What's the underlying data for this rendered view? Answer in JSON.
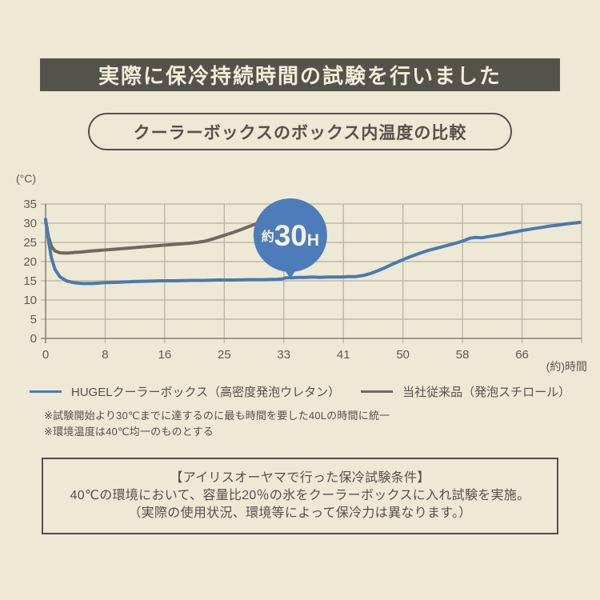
{
  "page": {
    "bg_color": "#EDE9D5",
    "ink_color": "#55524A"
  },
  "banner": {
    "title": "実際に保冷持続時間の試験を行いました",
    "bg_color": "#55524A",
    "text_color": "#F2EEDB"
  },
  "subtitle_pill": {
    "label": "クーラーボックスのボックス内温度の比較"
  },
  "chart_data": {
    "type": "line",
    "title": "クーラーボックスのボックス内温度の比較",
    "unit_label": "(°C)",
    "xlabel": "(約)時間",
    "ylim": [
      0,
      35
    ],
    "yticks": [
      35,
      30,
      25,
      20,
      15,
      10,
      5,
      0
    ],
    "xticks": [
      0,
      8,
      16,
      25,
      33,
      41,
      50,
      58,
      66
    ],
    "hours_per_tick": 8.25,
    "grid": true,
    "grid_color": "#B4B0A2",
    "axis_color": "#8A8679",
    "tick_text_color": "#5E5B51",
    "legend_position": "bottom",
    "annotation": {
      "prefix": "約",
      "value": "30",
      "suffix": "H",
      "t": 33.9,
      "bg_color": "#4C7DBA",
      "text_color": "#F4F1E3"
    },
    "series": [
      {
        "name": "HUGELクーラーボックス（高密度発泡ウレタン）",
        "color": "#4A79B2",
        "points": [
          [
            0,
            31
          ],
          [
            0.4,
            25.5
          ],
          [
            0.8,
            21
          ],
          [
            1.3,
            18
          ],
          [
            2,
            16
          ],
          [
            3,
            14.9
          ],
          [
            4,
            14.5
          ],
          [
            5,
            14.3
          ],
          [
            6.5,
            14.3
          ],
          [
            8,
            14.5
          ],
          [
            10,
            14.6
          ],
          [
            12,
            14.8
          ],
          [
            14,
            14.9
          ],
          [
            16,
            15.0
          ],
          [
            18,
            15.0
          ],
          [
            20,
            15.1
          ],
          [
            22,
            15.1
          ],
          [
            24,
            15.2
          ],
          [
            26,
            15.2
          ],
          [
            28,
            15.3
          ],
          [
            30,
            15.3
          ],
          [
            32,
            15.4
          ],
          [
            32.8,
            15.5
          ],
          [
            33.3,
            15.8
          ],
          [
            34,
            15.8
          ],
          [
            35,
            15.9
          ],
          [
            36,
            15.9
          ],
          [
            37,
            16.0
          ],
          [
            38,
            15.9
          ],
          [
            39,
            16.0
          ],
          [
            40,
            16.0
          ],
          [
            41,
            16.0
          ],
          [
            42,
            16.1
          ],
          [
            43,
            16.1
          ],
          [
            44,
            16.4
          ],
          [
            45,
            16.9
          ],
          [
            46,
            17.6
          ],
          [
            47,
            18.4
          ],
          [
            48,
            19.3
          ],
          [
            49,
            20.1
          ],
          [
            50,
            20.9
          ],
          [
            51,
            21.6
          ],
          [
            52,
            22.3
          ],
          [
            53,
            22.9
          ],
          [
            54,
            23.4
          ],
          [
            55,
            23.9
          ],
          [
            56,
            24.4
          ],
          [
            57,
            24.9
          ],
          [
            58,
            25.5
          ],
          [
            58.8,
            26.1
          ],
          [
            59.5,
            26.3
          ],
          [
            60.5,
            26.2
          ],
          [
            61,
            26.4
          ],
          [
            62,
            26.7
          ],
          [
            63,
            27.0
          ],
          [
            64,
            27.4
          ],
          [
            65,
            27.7
          ],
          [
            66,
            28.1
          ],
          [
            67,
            28.4
          ],
          [
            68,
            28.7
          ],
          [
            69,
            29.0
          ],
          [
            70,
            29.3
          ],
          [
            71,
            29.5
          ],
          [
            72,
            29.8
          ],
          [
            73,
            30.0
          ],
          [
            74,
            30.2
          ]
        ]
      },
      {
        "name": "当社従来品（発泡スチロール）",
        "color": "#6E6A5F",
        "points": [
          [
            0,
            30.8
          ],
          [
            0.4,
            26.5
          ],
          [
            0.8,
            24
          ],
          [
            1.3,
            22.8
          ],
          [
            2,
            22.3
          ],
          [
            3,
            22.2
          ],
          [
            4,
            22.4
          ],
          [
            5,
            22.5
          ],
          [
            6,
            22.7
          ],
          [
            8,
            23.0
          ],
          [
            10,
            23.3
          ],
          [
            12,
            23.6
          ],
          [
            14,
            23.9
          ],
          [
            16,
            24.2
          ],
          [
            18,
            24.5
          ],
          [
            20,
            24.8
          ],
          [
            21,
            25.0
          ],
          [
            22,
            25.3
          ],
          [
            23,
            25.8
          ],
          [
            24,
            26.4
          ],
          [
            25,
            27.0
          ],
          [
            26,
            27.6
          ],
          [
            27,
            28.3
          ],
          [
            28,
            29.0
          ],
          [
            29,
            29.7
          ],
          [
            29.8,
            30.3
          ]
        ]
      }
    ]
  },
  "notes": {
    "line1": "※試験開始より30℃までに達するのに最も時間を要した40Lの時間に統一",
    "line2": "※環境温度は40℃均一のものとする"
  },
  "conditions_box": {
    "title": "【アイリスオーヤマで行った保冷試験条件】",
    "body": "40℃の環境において、容量比20％の氷をクーラーボックスに入れ試験を実施。",
    "caveat": "（実際の使用状況、環境等によって保冷力は異なります。）"
  }
}
